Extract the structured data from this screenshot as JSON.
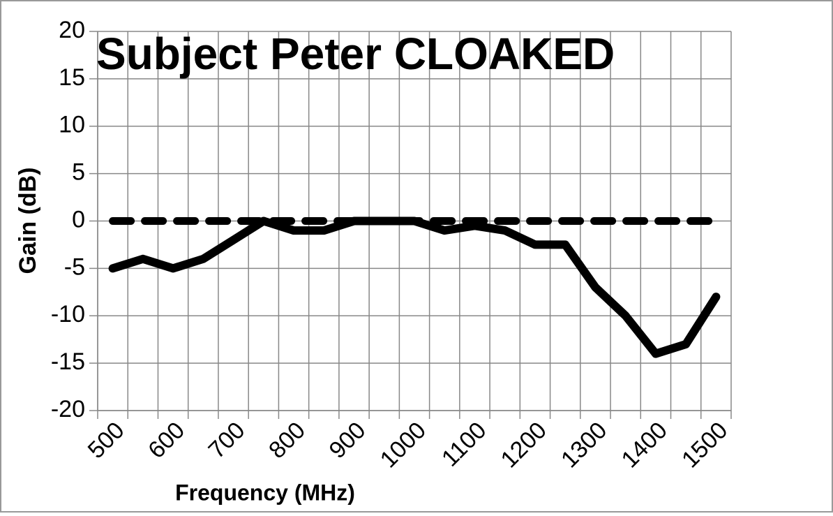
{
  "chart_data": {
    "type": "line",
    "title": "Subject Peter CLOAKED",
    "x_label": "Frequency (MHz)",
    "y_label": "Gain (dB)",
    "categories": [
      "500",
      null,
      "600",
      null,
      "700",
      null,
      "800",
      null,
      "900",
      null,
      "1000",
      null,
      "1100",
      null,
      "1200",
      null,
      "1300",
      null,
      "1400",
      null,
      "1500"
    ],
    "series": [
      {
        "color": "#000000",
        "dashed": false,
        "values": [
          -5,
          -4,
          -5,
          -4,
          -2,
          0,
          -1,
          -1,
          0,
          0,
          0,
          -1,
          -0.5,
          -1,
          -2.5,
          -2.5,
          -7,
          -10,
          -14,
          -13,
          -8
        ]
      },
      {
        "color": "#000000",
        "dashed": true,
        "values": [
          0,
          0,
          0,
          0,
          0,
          0,
          0,
          0,
          0,
          0,
          0,
          0,
          0,
          0,
          0,
          0,
          0,
          0,
          0,
          0,
          0
        ]
      }
    ],
    "ylim": [
      -20,
      20
    ],
    "yticks": [
      -20,
      -15,
      -10,
      -5,
      0,
      5,
      10,
      15,
      20
    ],
    "grid": true
  }
}
